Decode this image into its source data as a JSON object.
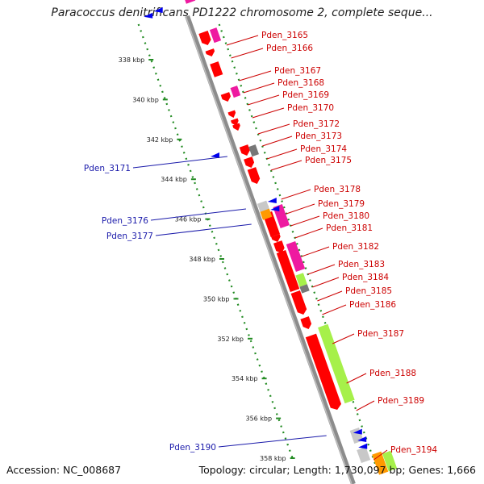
{
  "title": "Paracoccus denitrificans PD1222 chromosome 2, complete seque...",
  "accession": "Accession: NC_008687",
  "summary": "Topology: circular; Length: 1,730,097 bp; Genes: 1,666",
  "colors": {
    "backbone": "#8c8c8c",
    "ring": "#228b22",
    "red": "#ff0000",
    "magenta": "#ee1aa0",
    "blue": "#0000ee",
    "green": "#a6f04a",
    "gray": "#777777",
    "lightgray": "#c8c8c8",
    "orange": "#ff9a00",
    "label_forward": "#cc0000",
    "label_reverse": "#1a1aaa"
  },
  "scale_ticks": [
    {
      "label": "338 kbp",
      "kbp": 338
    },
    {
      "label": "340 kbp",
      "kbp": 340
    },
    {
      "label": "342 kbp",
      "kbp": 342
    },
    {
      "label": "344 kbp",
      "kbp": 344
    },
    {
      "label": "346 kbp",
      "kbp": 346
    },
    {
      "label": "348 kbp",
      "kbp": 348
    },
    {
      "label": "350 kbp",
      "kbp": 350
    },
    {
      "label": "352 kbp",
      "kbp": 352
    },
    {
      "label": "354 kbp",
      "kbp": 354
    },
    {
      "label": "356 kbp",
      "kbp": 356
    },
    {
      "label": "358 kbp",
      "kbp": 358
    }
  ],
  "gene_labels_forward": [
    "Pden_3165",
    "Pden_3166",
    "Pden_3167",
    "Pden_3168",
    "Pden_3169",
    "Pden_3170",
    "Pden_3172",
    "Pden_3173",
    "Pden_3174",
    "Pden_3175",
    "Pden_3178",
    "Pden_3179",
    "Pden_3180",
    "Pden_3181",
    "Pden_3182",
    "Pden_3183",
    "Pden_3184",
    "Pden_3185",
    "Pden_3186",
    "Pden_3187",
    "Pden_3188",
    "Pden_3189",
    "Pden_3194"
  ],
  "gene_labels_reverse": [
    "Pden_3171",
    "Pden_3176",
    "Pden_3177",
    "Pden_3190"
  ]
}
